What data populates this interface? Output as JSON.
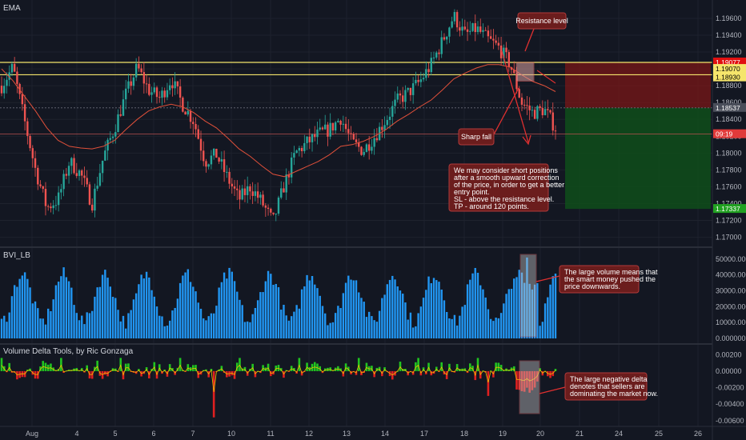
{
  "panes": {
    "price_title": "EMA",
    "volume_title": "BVI_LB",
    "delta_title": "Volume Delta Tools, by Ric Gonzaga"
  },
  "colors": {
    "background": "#131722",
    "bull": "#26a69a",
    "bear": "#ef5350",
    "ema": "#e0503a",
    "resistance_line": "#f5e56b",
    "volume_bar": "#2196f3",
    "delta_up": "#21c421",
    "delta_down": "#e02020",
    "delta_line": "#f0c000",
    "annotation_bg": "#6b1d1d",
    "annotation_border": "#b23a3a",
    "stop_zone": "#7a1717",
    "target_zone": "#0f4d1a"
  },
  "annotations": {
    "resistance": "Resistance level",
    "sharp_fall": "Sharp fall",
    "plan": [
      "We may consider short positions",
      "after a smooth upward correction",
      "of the price, in order to get a better",
      "entry point.",
      "SL - above the resistance level.",
      "TP - around 120 points."
    ],
    "volume_note": [
      "The large volume means that",
      "the smart money pushed the",
      "price downwards."
    ],
    "delta_note": [
      "The large negative delta",
      "denotes that sellers are",
      "dominating the market now."
    ]
  },
  "price_tags": [
    {
      "label": "1.19077",
      "bg": "#e01010",
      "fg": "#ffffff"
    },
    {
      "label": "1.19070",
      "bg": "#f5e56b",
      "fg": "#000000"
    },
    {
      "label": "1.18930",
      "bg": "#f5e56b",
      "fg": "#000000"
    },
    {
      "label": "1.18537",
      "bg": "#4a4e5a",
      "fg": "#ffffff"
    },
    {
      "label": "09:19",
      "bg": "#e03a3a",
      "fg": "#ffffff"
    },
    {
      "label": "1.17337",
      "bg": "#21a121",
      "fg": "#ffffff"
    }
  ],
  "chart_data": [
    {
      "type": "candlestick",
      "title": "EMA",
      "ylim": [
        1.1692,
        1.1978
      ],
      "y_ticks": [
        "1.19600",
        "1.19400",
        "1.19200",
        "1.19000",
        "1.18800",
        "1.18600",
        "1.18400",
        "1.18200",
        "1.18000",
        "1.17800",
        "1.17600",
        "1.17400",
        "1.17200",
        "1.17000"
      ],
      "x_ticks": [
        "Aug",
        "4",
        "5",
        "6",
        "7",
        "10",
        "11",
        "12",
        "13",
        "14",
        "17",
        "18",
        "19",
        "20",
        "21",
        "24",
        "25",
        "26"
      ],
      "horizontal_levels": [
        1.19077,
        1.1907,
        1.1893,
        1.18537,
        1.17337
      ],
      "close_path": [
        1.188,
        1.1902,
        1.184,
        1.178,
        1.1735,
        1.1745,
        1.179,
        1.1775,
        1.174,
        1.1795,
        1.183,
        1.187,
        1.1902,
        1.1875,
        1.1865,
        1.1888,
        1.1858,
        1.1838,
        1.179,
        1.1798,
        1.177,
        1.1745,
        1.176,
        1.1742,
        1.1718,
        1.1762,
        1.18,
        1.1812,
        1.1822,
        1.1828,
        1.1842,
        1.1812,
        1.1803,
        1.182,
        1.184,
        1.1862,
        1.1872,
        1.1885,
        1.1905,
        1.1933,
        1.1963,
        1.194,
        1.1948,
        1.1935,
        1.1925,
        1.1905,
        1.186,
        1.1848,
        1.1852,
        1.183
      ],
      "ema_path": [
        1.19,
        1.1886,
        1.1868,
        1.185,
        1.183,
        1.1815,
        1.1808,
        1.1806,
        1.1805,
        1.1808,
        1.1815,
        1.1828,
        1.184,
        1.185,
        1.1855,
        1.1858,
        1.1855,
        1.1848,
        1.1838,
        1.183,
        1.1818,
        1.1805,
        1.1796,
        1.1785,
        1.1775,
        1.1772,
        1.1778,
        1.1784,
        1.179,
        1.1798,
        1.1808,
        1.181,
        1.1814,
        1.182,
        1.1828,
        1.1838,
        1.1846,
        1.1855,
        1.1863,
        1.1875,
        1.1888,
        1.1895,
        1.1901,
        1.1905,
        1.1905,
        1.1902,
        1.1893,
        1.1885,
        1.188,
        1.1873
      ]
    },
    {
      "type": "bar",
      "title": "BVI_LB",
      "ylim": [
        -2000,
        56000
      ],
      "y_ticks": [
        "50000.000000",
        "40000.000000",
        "30000.000000",
        "20000.000000",
        "10000.000000",
        "0.000000"
      ]
    },
    {
      "type": "line",
      "title": "Volume Delta Tools, by Ric Gonzaga",
      "ylim": [
        -0.0065,
        0.003
      ],
      "y_ticks": [
        "0.00200",
        "0.00000",
        "-0.00200",
        "-0.00400",
        "-0.00600"
      ]
    }
  ]
}
